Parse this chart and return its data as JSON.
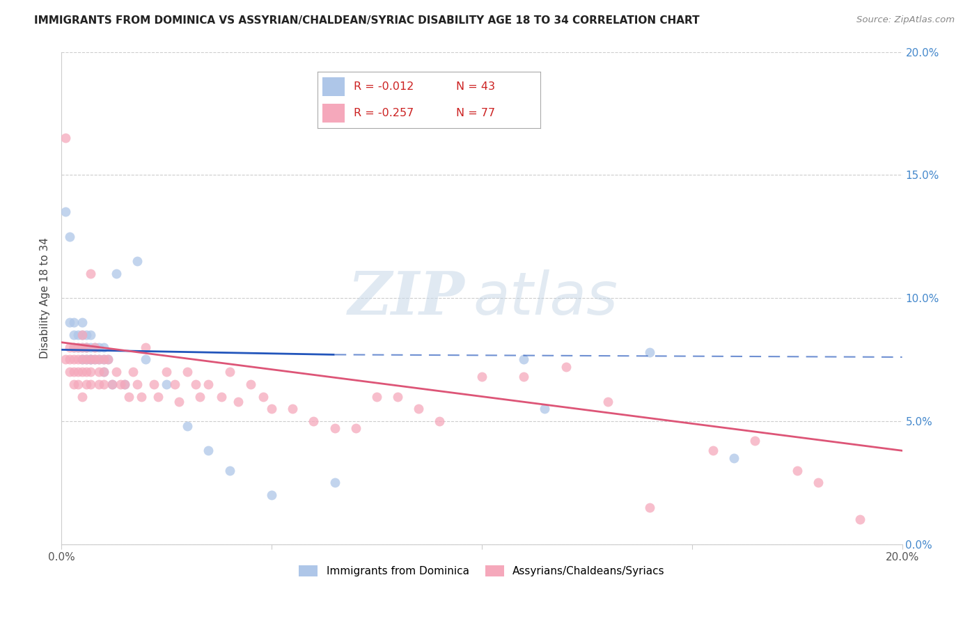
{
  "title": "IMMIGRANTS FROM DOMINICA VS ASSYRIAN/CHALDEAN/SYRIAC DISABILITY AGE 18 TO 34 CORRELATION CHART",
  "source": "Source: ZipAtlas.com",
  "ylabel": "Disability Age 18 to 34",
  "xlim": [
    0.0,
    0.2
  ],
  "ylim": [
    0.0,
    0.2
  ],
  "blue_R": -0.012,
  "blue_N": 43,
  "pink_R": -0.257,
  "pink_N": 77,
  "blue_color": "#aec6e8",
  "pink_color": "#f5a8bb",
  "blue_line_color": "#2255bb",
  "pink_line_color": "#dd5577",
  "legend_label_blue": "Immigrants from Dominica",
  "legend_label_pink": "Assyrians/Chaldeans/Syriacs",
  "watermark_zip": "ZIP",
  "watermark_atlas": "atlas",
  "blue_x": [
    0.001,
    0.002,
    0.002,
    0.003,
    0.003,
    0.003,
    0.004,
    0.004,
    0.005,
    0.005,
    0.005,
    0.005,
    0.006,
    0.006,
    0.006,
    0.006,
    0.007,
    0.007,
    0.007,
    0.007,
    0.008,
    0.008,
    0.009,
    0.009,
    0.01,
    0.01,
    0.01,
    0.011,
    0.012,
    0.013,
    0.015,
    0.018,
    0.02,
    0.025,
    0.03,
    0.035,
    0.04,
    0.05,
    0.065,
    0.11,
    0.115,
    0.14,
    0.16
  ],
  "blue_y": [
    0.135,
    0.09,
    0.125,
    0.085,
    0.09,
    0.08,
    0.085,
    0.08,
    0.09,
    0.085,
    0.08,
    0.075,
    0.085,
    0.08,
    0.08,
    0.075,
    0.085,
    0.08,
    0.075,
    0.075,
    0.08,
    0.075,
    0.08,
    0.075,
    0.08,
    0.075,
    0.07,
    0.075,
    0.065,
    0.11,
    0.065,
    0.115,
    0.075,
    0.065,
    0.048,
    0.038,
    0.03,
    0.02,
    0.025,
    0.075,
    0.055,
    0.078,
    0.035
  ],
  "pink_x": [
    0.001,
    0.001,
    0.002,
    0.002,
    0.002,
    0.003,
    0.003,
    0.003,
    0.003,
    0.004,
    0.004,
    0.004,
    0.004,
    0.005,
    0.005,
    0.005,
    0.005,
    0.005,
    0.006,
    0.006,
    0.006,
    0.006,
    0.007,
    0.007,
    0.007,
    0.007,
    0.008,
    0.008,
    0.009,
    0.009,
    0.009,
    0.01,
    0.01,
    0.01,
    0.011,
    0.012,
    0.013,
    0.014,
    0.015,
    0.016,
    0.017,
    0.018,
    0.019,
    0.02,
    0.022,
    0.023,
    0.025,
    0.027,
    0.028,
    0.03,
    0.032,
    0.033,
    0.035,
    0.038,
    0.04,
    0.042,
    0.045,
    0.048,
    0.05,
    0.055,
    0.06,
    0.065,
    0.07,
    0.075,
    0.08,
    0.085,
    0.09,
    0.1,
    0.11,
    0.12,
    0.13,
    0.14,
    0.155,
    0.165,
    0.175,
    0.18,
    0.19
  ],
  "pink_y": [
    0.075,
    0.165,
    0.08,
    0.075,
    0.07,
    0.08,
    0.075,
    0.07,
    0.065,
    0.08,
    0.075,
    0.07,
    0.065,
    0.085,
    0.08,
    0.075,
    0.07,
    0.06,
    0.08,
    0.075,
    0.07,
    0.065,
    0.075,
    0.07,
    0.065,
    0.11,
    0.08,
    0.075,
    0.075,
    0.07,
    0.065,
    0.075,
    0.07,
    0.065,
    0.075,
    0.065,
    0.07,
    0.065,
    0.065,
    0.06,
    0.07,
    0.065,
    0.06,
    0.08,
    0.065,
    0.06,
    0.07,
    0.065,
    0.058,
    0.07,
    0.065,
    0.06,
    0.065,
    0.06,
    0.07,
    0.058,
    0.065,
    0.06,
    0.055,
    0.055,
    0.05,
    0.047,
    0.047,
    0.06,
    0.06,
    0.055,
    0.05,
    0.068,
    0.068,
    0.072,
    0.058,
    0.015,
    0.038,
    0.042,
    0.03,
    0.025,
    0.01
  ]
}
